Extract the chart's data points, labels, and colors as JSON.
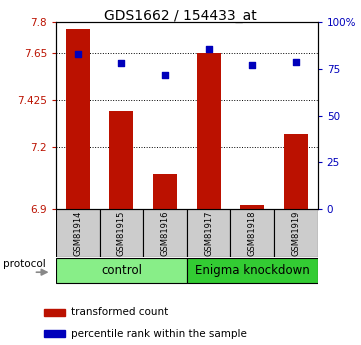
{
  "title": "GDS1662 / 154433_at",
  "samples": [
    "GSM81914",
    "GSM81915",
    "GSM81916",
    "GSM81917",
    "GSM81918",
    "GSM81919"
  ],
  "red_values": [
    7.77,
    7.37,
    7.07,
    7.65,
    6.92,
    7.26
  ],
  "blue_values": [
    83,
    78,
    72,
    86,
    77,
    79
  ],
  "ylim_left": [
    6.9,
    7.8
  ],
  "ylim_right": [
    0,
    100
  ],
  "yticks_left": [
    6.9,
    7.2,
    7.425,
    7.65,
    7.8
  ],
  "ytick_labels_left": [
    "6.9",
    "7.2",
    "7.425",
    "7.65",
    "7.8"
  ],
  "yticks_right": [
    0,
    25,
    50,
    75,
    100
  ],
  "ytick_labels_right": [
    "0",
    "25",
    "50",
    "75",
    "100%"
  ],
  "groups": [
    {
      "label": "control",
      "indices": [
        0,
        1,
        2
      ],
      "color": "#88ee88"
    },
    {
      "label": "Enigma knockdown",
      "indices": [
        3,
        4,
        5
      ],
      "color": "#33cc33"
    }
  ],
  "bar_color": "#bb1100",
  "dot_color": "#0000bb",
  "bar_width": 0.55,
  "legend_labels": [
    "transformed count",
    "percentile rank within the sample"
  ],
  "protocol_label": "protocol",
  "tick_box_color": "#cccccc"
}
